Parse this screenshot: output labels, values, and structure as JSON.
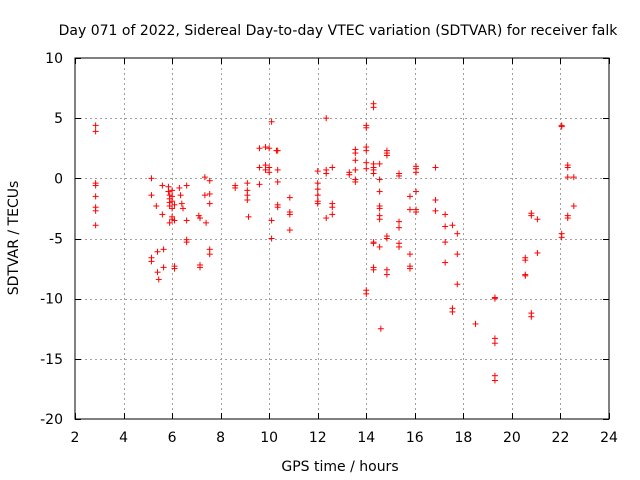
{
  "chart_data": {
    "type": "scatter",
    "title": "Day 071 of 2022, Sidereal Day-to-day VTEC variation (SDTVAR) for receiver falk",
    "xlabel": "GPS time / hours",
    "ylabel": "SDTVAR / TECUs",
    "xlim": [
      2,
      24
    ],
    "ylim": [
      -20,
      10
    ],
    "xticks": [
      2,
      4,
      6,
      8,
      10,
      12,
      14,
      16,
      18,
      20,
      22,
      24
    ],
    "yticks": [
      -20,
      -15,
      -10,
      -5,
      0,
      5,
      10
    ],
    "grid": true,
    "marker": "+",
    "color": "#ff0000",
    "points": [
      [
        2.85,
        4.4
      ],
      [
        2.85,
        3.9
      ],
      [
        2.85,
        -0.4
      ],
      [
        2.85,
        -0.6
      ],
      [
        2.85,
        -1.5
      ],
      [
        2.85,
        -2.4
      ],
      [
        2.85,
        -2.7
      ],
      [
        2.85,
        -3.9
      ],
      [
        5.15,
        0.0
      ],
      [
        5.15,
        -1.4
      ],
      [
        5.15,
        -6.6
      ],
      [
        5.15,
        -6.9
      ],
      [
        5.35,
        -2.3
      ],
      [
        5.4,
        -6.1
      ],
      [
        5.4,
        -7.8
      ],
      [
        5.45,
        -8.4
      ],
      [
        5.6,
        -0.6
      ],
      [
        5.6,
        -3.0
      ],
      [
        5.65,
        -5.9
      ],
      [
        5.65,
        -7.4
      ],
      [
        5.85,
        -0.7
      ],
      [
        5.85,
        -1.1
      ],
      [
        5.9,
        -1.4
      ],
      [
        5.9,
        -1.7
      ],
      [
        5.9,
        -2.0
      ],
      [
        5.9,
        -2.3
      ],
      [
        5.9,
        -3.7
      ],
      [
        6.0,
        -1.0
      ],
      [
        6.0,
        -1.5
      ],
      [
        6.0,
        -1.9
      ],
      [
        6.0,
        -2.5
      ],
      [
        6.0,
        -3.2
      ],
      [
        6.0,
        -3.4
      ],
      [
        6.1,
        -2.2
      ],
      [
        6.1,
        -3.5
      ],
      [
        6.1,
        -7.3
      ],
      [
        6.1,
        -7.5
      ],
      [
        6.3,
        -0.8
      ],
      [
        6.35,
        -1.4
      ],
      [
        6.4,
        -2.1
      ],
      [
        6.45,
        -2.5
      ],
      [
        6.6,
        -0.6
      ],
      [
        6.6,
        -3.5
      ],
      [
        6.6,
        -5.1
      ],
      [
        6.6,
        -5.3
      ],
      [
        7.1,
        -3.1
      ],
      [
        7.15,
        -3.3
      ],
      [
        7.15,
        -7.2
      ],
      [
        7.15,
        -7.4
      ],
      [
        7.35,
        0.1
      ],
      [
        7.35,
        -1.4
      ],
      [
        7.4,
        -3.7
      ],
      [
        7.55,
        -0.2
      ],
      [
        7.55,
        -1.3
      ],
      [
        7.55,
        -2.1
      ],
      [
        7.55,
        -5.9
      ],
      [
        7.55,
        -6.3
      ],
      [
        8.6,
        -0.6
      ],
      [
        8.6,
        -0.8
      ],
      [
        9.1,
        -0.4
      ],
      [
        9.1,
        -1.0
      ],
      [
        9.1,
        -1.4
      ],
      [
        9.1,
        -1.8
      ],
      [
        9.15,
        -3.2
      ],
      [
        9.6,
        2.5
      ],
      [
        9.6,
        0.9
      ],
      [
        9.6,
        -0.5
      ],
      [
        9.85,
        2.6
      ],
      [
        9.85,
        1.1
      ],
      [
        9.85,
        0.7
      ],
      [
        10.0,
        2.5
      ],
      [
        10.0,
        0.9
      ],
      [
        10.0,
        0.5
      ],
      [
        10.1,
        4.7
      ],
      [
        10.1,
        -3.5
      ],
      [
        10.1,
        -5.0
      ],
      [
        10.3,
        2.3
      ],
      [
        10.35,
        2.3
      ],
      [
        10.35,
        0.7
      ],
      [
        10.35,
        -0.3
      ],
      [
        10.35,
        -2.2
      ],
      [
        10.35,
        -2.4
      ],
      [
        10.85,
        -1.6
      ],
      [
        10.85,
        -2.8
      ],
      [
        10.85,
        -3.0
      ],
      [
        10.85,
        -4.3
      ],
      [
        12.0,
        0.6
      ],
      [
        12.0,
        -0.4
      ],
      [
        12.0,
        -0.9
      ],
      [
        12.0,
        -1.4
      ],
      [
        12.0,
        -1.9
      ],
      [
        12.0,
        -2.1
      ],
      [
        12.35,
        5.0
      ],
      [
        12.35,
        0.7
      ],
      [
        12.35,
        0.4
      ],
      [
        12.35,
        -3.3
      ],
      [
        12.6,
        0.9
      ],
      [
        12.6,
        -2.1
      ],
      [
        12.6,
        -2.4
      ],
      [
        12.6,
        -3.0
      ],
      [
        13.3,
        0.5
      ],
      [
        13.3,
        0.3
      ],
      [
        13.55,
        2.4
      ],
      [
        13.55,
        2.1
      ],
      [
        13.55,
        1.5
      ],
      [
        13.55,
        0.7
      ],
      [
        13.55,
        -0.1
      ],
      [
        13.55,
        -0.3
      ],
      [
        14.0,
        4.4
      ],
      [
        14.0,
        4.2
      ],
      [
        14.0,
        2.6
      ],
      [
        14.0,
        2.3
      ],
      [
        14.0,
        1.3
      ],
      [
        14.0,
        0.8
      ],
      [
        14.0,
        -9.3
      ],
      [
        14.0,
        -9.6
      ],
      [
        14.3,
        6.2
      ],
      [
        14.3,
        5.9
      ],
      [
        14.3,
        1.2
      ],
      [
        14.3,
        0.9
      ],
      [
        14.3,
        0.7
      ],
      [
        14.3,
        0.4
      ],
      [
        14.3,
        -5.3
      ],
      [
        14.3,
        -5.4
      ],
      [
        14.3,
        -7.4
      ],
      [
        14.3,
        -7.6
      ],
      [
        14.55,
        1.2
      ],
      [
        14.55,
        -0.1
      ],
      [
        14.55,
        -1.1
      ],
      [
        14.55,
        -2.3
      ],
      [
        14.55,
        -2.5
      ],
      [
        14.55,
        -3.1
      ],
      [
        14.55,
        -3.4
      ],
      [
        14.55,
        -5.7
      ],
      [
        14.6,
        -12.5
      ],
      [
        14.85,
        2.3
      ],
      [
        14.85,
        2.1
      ],
      [
        14.85,
        1.9
      ],
      [
        14.85,
        -4.8
      ],
      [
        14.85,
        -5.0
      ],
      [
        14.85,
        -7.6
      ],
      [
        14.85,
        -8.0
      ],
      [
        15.35,
        0.4
      ],
      [
        15.35,
        0.2
      ],
      [
        15.35,
        -3.6
      ],
      [
        15.35,
        -4.1
      ],
      [
        15.35,
        -5.4
      ],
      [
        15.35,
        -5.7
      ],
      [
        15.8,
        -1.5
      ],
      [
        15.8,
        -2.6
      ],
      [
        15.8,
        -6.3
      ],
      [
        15.8,
        -7.3
      ],
      [
        15.8,
        -7.5
      ],
      [
        16.05,
        1.0
      ],
      [
        16.05,
        0.8
      ],
      [
        16.05,
        0.5
      ],
      [
        16.05,
        -1.1
      ],
      [
        16.05,
        -2.6
      ],
      [
        16.05,
        -2.8
      ],
      [
        16.85,
        0.9
      ],
      [
        16.85,
        -1.8
      ],
      [
        16.85,
        -2.7
      ],
      [
        17.25,
        -3.0
      ],
      [
        17.25,
        -4.0
      ],
      [
        17.25,
        -5.3
      ],
      [
        17.25,
        -7.0
      ],
      [
        17.55,
        -3.9
      ],
      [
        17.55,
        -10.8
      ],
      [
        17.55,
        -11.1
      ],
      [
        17.75,
        -4.6
      ],
      [
        17.75,
        -6.3
      ],
      [
        17.75,
        -8.8
      ],
      [
        18.5,
        -12.1
      ],
      [
        19.3,
        -9.9
      ],
      [
        19.3,
        -10.0
      ],
      [
        19.3,
        -13.3
      ],
      [
        19.3,
        -13.7
      ],
      [
        19.3,
        -16.4
      ],
      [
        19.3,
        -16.8
      ],
      [
        20.55,
        -6.6
      ],
      [
        20.55,
        -6.8
      ],
      [
        20.55,
        -8.0
      ],
      [
        20.55,
        -8.1
      ],
      [
        20.8,
        -2.9
      ],
      [
        20.8,
        -3.1
      ],
      [
        20.8,
        -11.2
      ],
      [
        20.8,
        -11.5
      ],
      [
        21.05,
        -3.4
      ],
      [
        21.05,
        -6.2
      ],
      [
        22.05,
        4.4
      ],
      [
        22.05,
        4.3
      ],
      [
        22.05,
        -4.6
      ],
      [
        22.05,
        -4.9
      ],
      [
        22.3,
        1.1
      ],
      [
        22.3,
        0.9
      ],
      [
        22.3,
        0.1
      ],
      [
        22.3,
        -3.1
      ],
      [
        22.3,
        -3.3
      ],
      [
        22.55,
        0.1
      ],
      [
        22.55,
        -2.3
      ]
    ]
  }
}
